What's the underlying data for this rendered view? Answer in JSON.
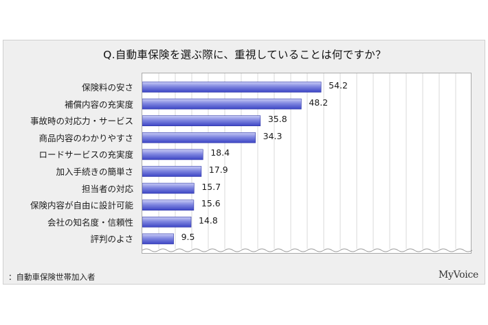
{
  "title": "Q.自動車保険を選ぶ際に、重視していることは何ですか？",
  "footnote": "：自動車保険世帯加入者",
  "brand": "MyVoice",
  "colors": {
    "bar_light": "#c9ccf5",
    "bar_dark": "#3c45c4",
    "grid": "#d8d8d8"
  },
  "chart_data": {
    "type": "bar",
    "orientation": "horizontal",
    "title": "Q.自動車保険を選ぶ際に、重視していることは何ですか？",
    "xlabel": "",
    "ylabel": "",
    "xlim": [
      0,
      100
    ],
    "grid": true,
    "categories": [
      "保険料の安さ",
      "補償内容の充実度",
      "事故時の対応力・サービス",
      "商品内容のわかりやすさ",
      "ロードサービスの充実度",
      "加入手続きの簡単さ",
      "担当者の対応",
      "保険内容が自由に設計可能",
      "会社の知名度・信頼性",
      "評判のよさ"
    ],
    "values": [
      54.2,
      48.2,
      35.8,
      34.3,
      18.4,
      17.9,
      15.7,
      15.6,
      14.8,
      9.5
    ],
    "value_labels": [
      "54.2",
      "48.2",
      "35.8",
      "34.3",
      "18.4",
      "17.9",
      "15.7",
      "15.6",
      "14.8",
      "9.5"
    ]
  }
}
